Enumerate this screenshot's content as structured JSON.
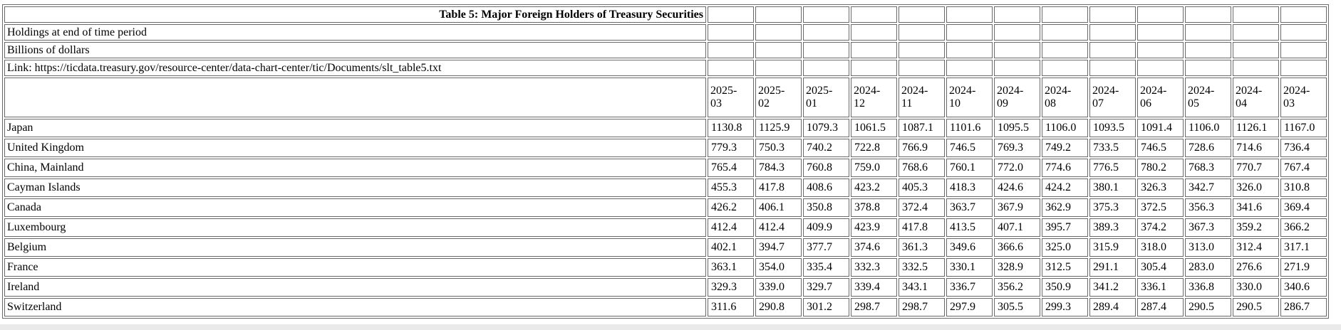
{
  "page": {
    "table_border_color": "#696969",
    "bottom_strip_color": "#eaeaea"
  },
  "chart_data": {
    "type": "table",
    "title": "Table 5: Major Foreign Holders of Treasury Securities",
    "notes": [
      "Holdings at end of time period",
      "Billions of dollars"
    ],
    "link": "Link: https://ticdata.treasury.gov/resource-center/data-chart-center/tic/Documents/slt_table5.txt",
    "columns": [
      "2025-03",
      "2025-02",
      "2025-01",
      "2024-12",
      "2024-11",
      "2024-10",
      "2024-09",
      "2024-08",
      "2024-07",
      "2024-06",
      "2024-05",
      "2024-04",
      "2024-03"
    ],
    "series": [
      {
        "name": "Japan",
        "values": [
          1130.8,
          1125.9,
          1079.3,
          1061.5,
          1087.1,
          1101.6,
          1095.5,
          1106.0,
          1093.5,
          1091.4,
          1106.0,
          1126.1,
          1167.0
        ]
      },
      {
        "name": "United Kingdom",
        "values": [
          779.3,
          750.3,
          740.2,
          722.8,
          766.9,
          746.5,
          769.3,
          749.2,
          733.5,
          746.5,
          728.6,
          714.6,
          736.4
        ]
      },
      {
        "name": "China, Mainland",
        "values": [
          765.4,
          784.3,
          760.8,
          759.0,
          768.6,
          760.1,
          772.0,
          774.6,
          776.5,
          780.2,
          768.3,
          770.7,
          767.4
        ]
      },
      {
        "name": "Cayman Islands",
        "values": [
          455.3,
          417.8,
          408.6,
          423.2,
          405.3,
          418.3,
          424.6,
          424.2,
          380.1,
          326.3,
          342.7,
          326.0,
          310.8
        ]
      },
      {
        "name": "Canada",
        "values": [
          426.2,
          406.1,
          350.8,
          378.8,
          372.4,
          363.7,
          367.9,
          362.9,
          375.3,
          372.5,
          356.3,
          341.6,
          369.4
        ]
      },
      {
        "name": "Luxembourg",
        "values": [
          412.4,
          412.4,
          409.9,
          423.9,
          417.8,
          413.5,
          407.1,
          395.7,
          389.3,
          374.2,
          367.3,
          359.2,
          366.2
        ]
      },
      {
        "name": "Belgium",
        "values": [
          402.1,
          394.7,
          377.7,
          374.6,
          361.3,
          349.6,
          366.6,
          325.0,
          315.9,
          318.0,
          313.0,
          312.4,
          317.1
        ]
      },
      {
        "name": "France",
        "values": [
          363.1,
          354.0,
          335.4,
          332.3,
          332.5,
          330.1,
          328.9,
          312.5,
          291.1,
          305.4,
          283.0,
          276.6,
          271.9
        ]
      },
      {
        "name": "Ireland",
        "values": [
          329.3,
          339.0,
          329.7,
          339.4,
          343.1,
          336.7,
          356.2,
          350.9,
          341.2,
          336.1,
          336.8,
          330.0,
          340.6
        ]
      },
      {
        "name": "Switzerland",
        "values": [
          311.6,
          290.8,
          301.2,
          298.7,
          298.7,
          297.9,
          305.5,
          299.3,
          289.4,
          287.4,
          290.5,
          290.5,
          286.7
        ]
      }
    ]
  }
}
